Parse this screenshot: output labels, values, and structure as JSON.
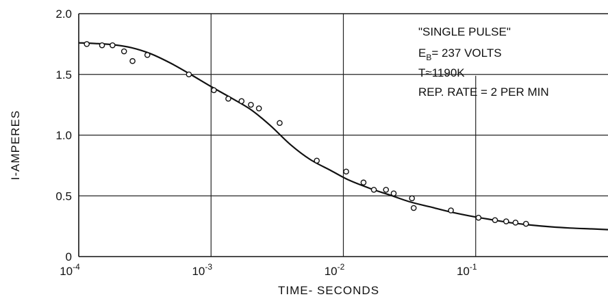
{
  "chart_data": {
    "type": "scatter",
    "title": "",
    "xlabel": "TIME- SECONDS",
    "ylabel": "I-AMPERES",
    "x_scale": "log",
    "xlim": [
      0.0001,
      1
    ],
    "ylim": [
      0,
      2.0
    ],
    "grid": true,
    "x_ticks": [
      {
        "value": 0.0001,
        "base": "10",
        "exp": "-4"
      },
      {
        "value": 0.001,
        "base": "10",
        "exp": "-3"
      },
      {
        "value": 0.01,
        "base": "10",
        "exp": "-2"
      },
      {
        "value": 0.1,
        "base": "10",
        "exp": "-1"
      }
    ],
    "y_ticks": [
      {
        "value": 0,
        "label": "0"
      },
      {
        "value": 0.5,
        "label": "0.5"
      },
      {
        "value": 1.0,
        "label": "1.0"
      },
      {
        "value": 1.5,
        "label": "1.5"
      },
      {
        "value": 2.0,
        "label": "2.0"
      }
    ],
    "annotations": {
      "line1": "\"SINGLE PULSE\"",
      "line2_prefix": "E",
      "line2_sub": "B",
      "line2_rest": "= 237 VOLTS",
      "line3": "T≈1190K",
      "line4": "REP. RATE = 2 PER MIN"
    },
    "series": [
      {
        "marker": "open-circle",
        "x": [
          0.000115,
          0.00015,
          0.00018,
          0.00022,
          0.000255,
          0.00033,
          0.00068,
          0.00105,
          0.00135,
          0.0017,
          0.002,
          0.0023,
          0.0033,
          0.0063,
          0.0105,
          0.0142,
          0.017,
          0.021,
          0.024,
          0.033,
          0.034,
          0.065,
          0.105,
          0.14,
          0.17,
          0.2,
          0.24
        ],
        "y": [
          1.75,
          1.74,
          1.74,
          1.69,
          1.61,
          1.66,
          1.5,
          1.37,
          1.3,
          1.28,
          1.25,
          1.22,
          1.1,
          0.79,
          0.7,
          0.61,
          0.55,
          0.55,
          0.52,
          0.48,
          0.4,
          0.38,
          0.32,
          0.3,
          0.29,
          0.28,
          0.27
        ]
      },
      {
        "marker": "none",
        "style": "smooth-line",
        "x": [
          0.0001,
          0.00013,
          0.00018,
          0.00025,
          0.00035,
          0.0005,
          0.0007,
          0.001,
          0.0014,
          0.002,
          0.0028,
          0.004,
          0.0056,
          0.008,
          0.011,
          0.016,
          0.022,
          0.032,
          0.045,
          0.063,
          0.09,
          0.13,
          0.18,
          0.26,
          0.37,
          0.52,
          0.75,
          1.0
        ],
        "y": [
          1.76,
          1.755,
          1.745,
          1.72,
          1.67,
          1.59,
          1.5,
          1.4,
          1.31,
          1.21,
          1.08,
          0.92,
          0.8,
          0.71,
          0.63,
          0.56,
          0.51,
          0.45,
          0.41,
          0.37,
          0.335,
          0.305,
          0.28,
          0.26,
          0.245,
          0.235,
          0.228,
          0.222
        ]
      }
    ]
  }
}
